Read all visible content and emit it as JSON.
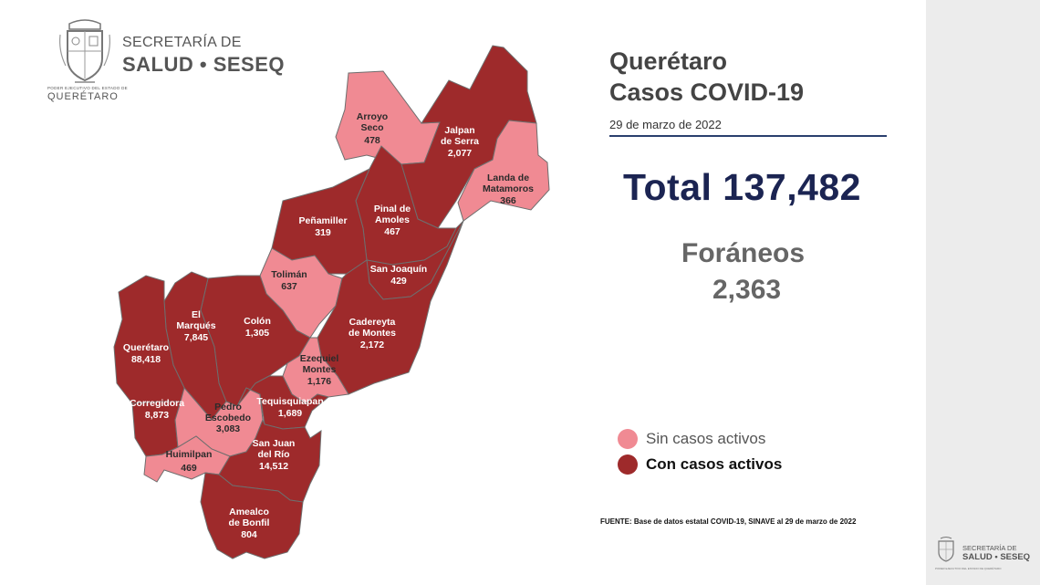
{
  "header": {
    "gov_small": "PODER EJECUTIVO DEL ESTADO DE",
    "gov_name": "QUERÉTARO",
    "line1": "SECRETARÍA DE",
    "line2": "SALUD • SESEQ"
  },
  "title": {
    "line1": "Querétaro",
    "line2": "Casos COVID-19",
    "date": "29 de marzo de 2022"
  },
  "total": "Total 137,482",
  "foraneos": {
    "label": "Foráneos",
    "value": "2,363"
  },
  "legend": [
    {
      "label": "Sin casos activos",
      "color": "#f08a93"
    },
    {
      "label": "Con casos activos",
      "color": "#9e2a2b"
    }
  ],
  "source": "FUENTE: Base de datos estatal  COVID-19,  SINAVE  al 29 de marzo de 2022",
  "colors": {
    "active": "#9e2a2b",
    "inactive": "#f08a93",
    "title_navy": "#1b2452"
  },
  "municipalities": {
    "arroyo_seco": {
      "name1": "Arroyo",
      "name2": "Seco",
      "cases": "478",
      "status": "inactive"
    },
    "jalpan": {
      "name1": "Jalpan",
      "name2": "de Serra",
      "cases": "2,077",
      "status": "active"
    },
    "landa": {
      "name1": "Landa de",
      "name2": "Matamoros",
      "cases": "366",
      "status": "inactive"
    },
    "pinal": {
      "name1": "Pinal de",
      "name2": "Amoles",
      "cases": "467",
      "status": "active"
    },
    "penamiller": {
      "name1": "Peñamiller",
      "cases": "319",
      "status": "active"
    },
    "san_joaquin": {
      "name1": "San Joaquín",
      "cases": "429",
      "status": "active"
    },
    "toliman": {
      "name1": "Tolimán",
      "cases": "637",
      "status": "inactive"
    },
    "el_marques": {
      "name1": "El",
      "name2": "Marqués",
      "cases": "7,845",
      "status": "active"
    },
    "colon": {
      "name1": "Colón",
      "cases": "1,305",
      "status": "active"
    },
    "cadereyta": {
      "name1": "Cadereyta",
      "name2": "de Montes",
      "cases": "2,172",
      "status": "active"
    },
    "queretaro": {
      "name1": "Querétaro",
      "cases": "88,418",
      "status": "active"
    },
    "ezequiel": {
      "name1": "Ezequiel",
      "name2": "Montes",
      "cases": "1,176",
      "status": "inactive"
    },
    "corregidora": {
      "name1": "Corregidora",
      "cases": "8,873",
      "status": "active"
    },
    "pedro": {
      "name1": "Pedro",
      "name2": "Escobedo",
      "cases": "3,083",
      "status": "inactive"
    },
    "tequisquiapan": {
      "name1": "Tequisquiapan",
      "cases": "1,689",
      "status": "active"
    },
    "huimilpan": {
      "name1": "Huimilpan",
      "cases": "469",
      "status": "inactive"
    },
    "san_juan": {
      "name1": "San Juan",
      "name2": "del Río",
      "cases": "14,512",
      "status": "active"
    },
    "amealco": {
      "name1": "Amealco",
      "name2": "de Bonfil",
      "cases": "804",
      "status": "active"
    }
  },
  "mini_logo": {
    "line1": "SECRETARÍA DE",
    "line2": "SALUD • SESEQ",
    "gov": "PODER EJECUTIVO DEL ESTADO DE QUERÉTARO"
  }
}
